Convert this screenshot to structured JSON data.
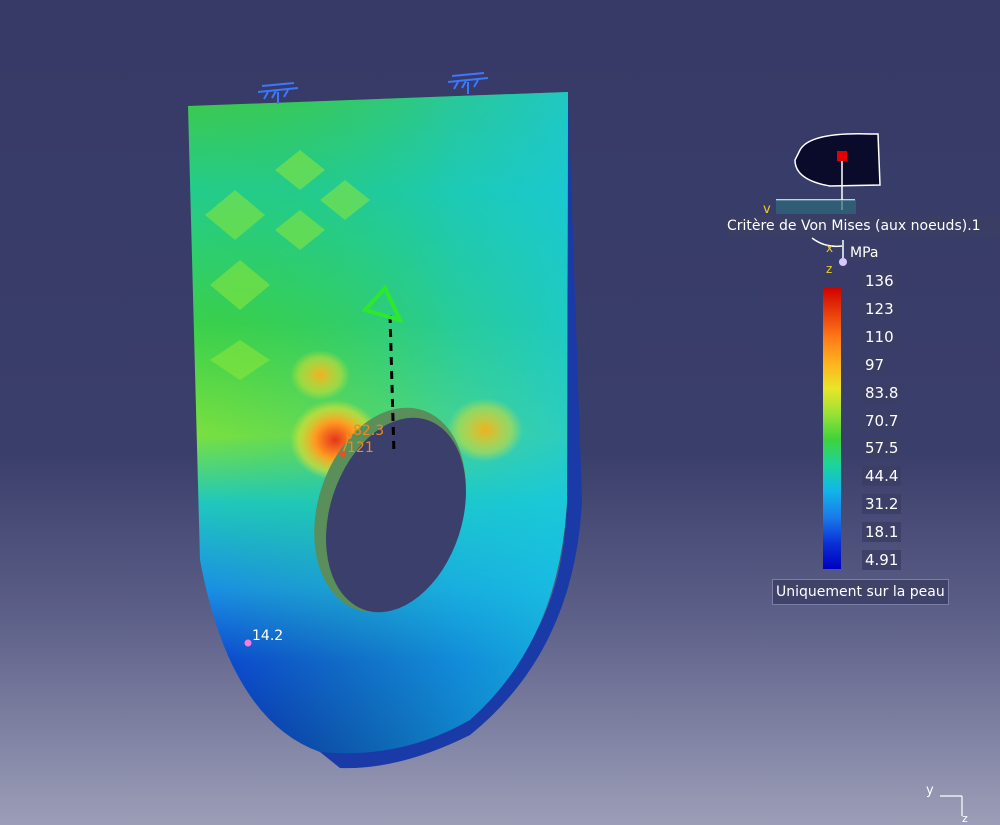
{
  "legend": {
    "title": "Critère de Von Mises (aux noeuds).1",
    "unit": "MPa",
    "ticks": [
      "136",
      "123",
      "110",
      "97",
      "83.8",
      "70.7",
      "57.5",
      "44.4",
      "31.2",
      "18.1",
      "4.91"
    ],
    "note": "Uniquement sur la peau"
  },
  "markers": {
    "value_1": "82.3",
    "value_2": "121",
    "value_3": "14.2"
  },
  "compass": {
    "v_label": "v",
    "x_label": "x",
    "z_label": "z"
  },
  "axis_triad": {
    "y_label": "y",
    "z_label": "z"
  },
  "colors": {
    "background_top": "#373a66",
    "background_bottom": "#9c9eb8",
    "max_color": "#d00000",
    "min_color": "#0000c0",
    "marker_orange": "#f08a1a",
    "marker_pink": "#ff7ad8"
  }
}
